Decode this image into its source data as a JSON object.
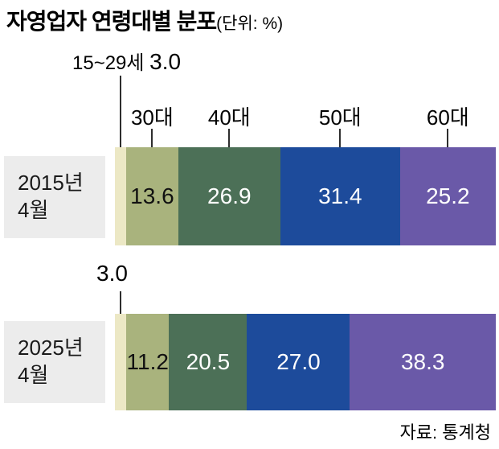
{
  "header": {
    "title": "자영업자 연령대별 분포",
    "unit_label": "(단위: %)"
  },
  "source_label": "자료: 통계청",
  "chart_data": {
    "type": "bar",
    "stacked": true,
    "orientation": "horizontal",
    "unit": "%",
    "title": "자영업자 연령대별 분포",
    "categories": [
      "15~29세",
      "30대",
      "40대",
      "50대",
      "60대"
    ],
    "colors": [
      "#ece8c5",
      "#a9b37d",
      "#4c7057",
      "#1d4b9b",
      "#6a59a8"
    ],
    "value_text_colors": [
      "#111111",
      "#111111",
      "#ffffff",
      "#ffffff",
      "#ffffff"
    ],
    "series": [
      {
        "name": "2015년 4월",
        "label_lines": "2015년\n4월",
        "values": [
          3.0,
          13.6,
          26.9,
          31.4,
          25.2
        ]
      },
      {
        "name": "2025년 4월",
        "label_lines": "2025년\n4월",
        "values": [
          3.0,
          11.2,
          20.5,
          27.0,
          38.3
        ]
      }
    ],
    "callouts": {
      "first_segment_label": "15~29세",
      "first_segment_value_2015": "3.0",
      "first_segment_value_2025": "3.0"
    },
    "legend_position": "top",
    "xlim": [
      0,
      100
    ],
    "grid": false
  }
}
